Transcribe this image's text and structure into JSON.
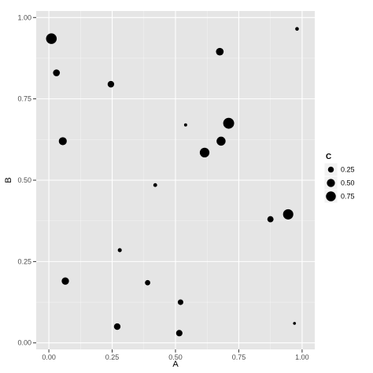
{
  "chart_data": {
    "type": "scatter",
    "xlabel": "A",
    "ylabel": "B",
    "xlim": [
      -0.05,
      1.05
    ],
    "ylim": [
      -0.02,
      1.02
    ],
    "x_ticks": [
      {
        "value": 0.0,
        "label": "0.00"
      },
      {
        "value": 0.25,
        "label": "0.25"
      },
      {
        "value": 0.5,
        "label": "0.50"
      },
      {
        "value": 0.75,
        "label": "0.75"
      },
      {
        "value": 1.0,
        "label": "1.00"
      }
    ],
    "y_ticks": [
      {
        "value": 0.0,
        "label": "0.00"
      },
      {
        "value": 0.25,
        "label": "0.25"
      },
      {
        "value": 0.5,
        "label": "0.50"
      },
      {
        "value": 0.75,
        "label": "0.75"
      },
      {
        "value": 1.0,
        "label": "1.00"
      }
    ],
    "size_legend": {
      "title": "C",
      "entries": [
        {
          "value": 0.25,
          "label": "0.25"
        },
        {
          "value": 0.5,
          "label": "0.50"
        },
        {
          "value": 0.75,
          "label": "0.75"
        }
      ]
    },
    "size_scale": {
      "min": 0.0,
      "max": 1.0
    },
    "grid": true,
    "legend_position": "right",
    "panel_color": "#e5e5e5",
    "grid_color": "#ffffff",
    "point_color": "#000000",
    "points": [
      {
        "x": 0.01,
        "y": 0.935,
        "c": 0.88
      },
      {
        "x": 0.03,
        "y": 0.83,
        "c": 0.35
      },
      {
        "x": 0.055,
        "y": 0.62,
        "c": 0.48
      },
      {
        "x": 0.065,
        "y": 0.19,
        "c": 0.4
      },
      {
        "x": 0.245,
        "y": 0.795,
        "c": 0.32
      },
      {
        "x": 0.27,
        "y": 0.05,
        "c": 0.32
      },
      {
        "x": 0.28,
        "y": 0.285,
        "c": 0.1
      },
      {
        "x": 0.39,
        "y": 0.185,
        "c": 0.2
      },
      {
        "x": 0.42,
        "y": 0.485,
        "c": 0.09
      },
      {
        "x": 0.515,
        "y": 0.03,
        "c": 0.3
      },
      {
        "x": 0.52,
        "y": 0.125,
        "c": 0.22
      },
      {
        "x": 0.54,
        "y": 0.67,
        "c": 0.05
      },
      {
        "x": 0.615,
        "y": 0.585,
        "c": 0.72
      },
      {
        "x": 0.675,
        "y": 0.895,
        "c": 0.44
      },
      {
        "x": 0.68,
        "y": 0.62,
        "c": 0.62
      },
      {
        "x": 0.71,
        "y": 0.675,
        "c": 0.93
      },
      {
        "x": 0.875,
        "y": 0.38,
        "c": 0.28
      },
      {
        "x": 0.945,
        "y": 0.395,
        "c": 0.82
      },
      {
        "x": 0.97,
        "y": 0.06,
        "c": 0.04
      },
      {
        "x": 0.98,
        "y": 0.965,
        "c": 0.08
      }
    ]
  }
}
